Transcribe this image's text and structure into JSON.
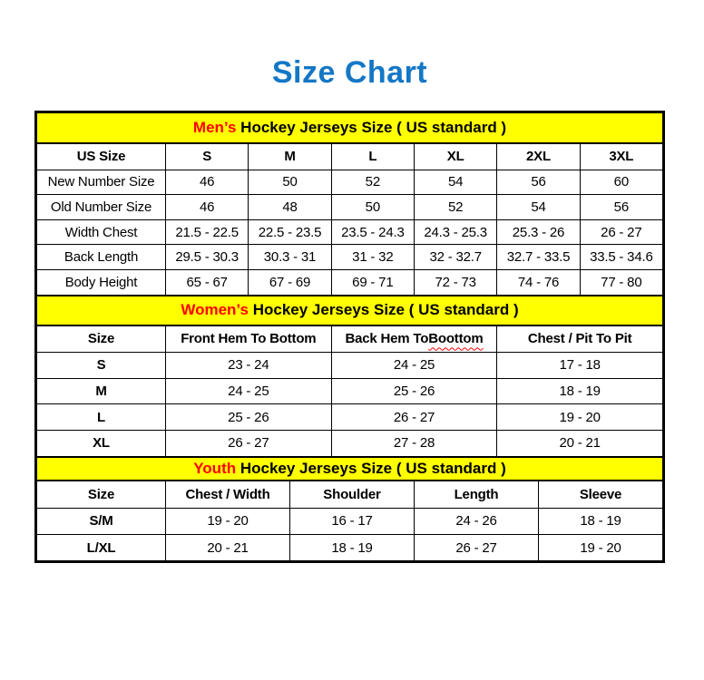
{
  "page": {
    "title": "Size Chart"
  },
  "colors": {
    "title_blue": "#1377c6",
    "band_yellow": "#ffff00",
    "accent_red": "#ff0000",
    "border_black": "#000000"
  },
  "mens": {
    "title_accent": "Men’s",
    "title_rest": " Hockey Jerseys Size ( US standard )",
    "headers": [
      "US Size",
      "S",
      "M",
      "L",
      "XL",
      "2XL",
      "3XL"
    ],
    "rows": [
      {
        "label": "New Number Size",
        "values": [
          "46",
          "50",
          "52",
          "54",
          "56",
          "60"
        ]
      },
      {
        "label": "Old Number Size",
        "values": [
          "46",
          "48",
          "50",
          "52",
          "54",
          "56"
        ]
      },
      {
        "label": "Width Chest",
        "values": [
          "21.5 - 22.5",
          "22.5 - 23.5",
          "23.5 - 24.3",
          "24.3 - 25.3",
          "25.3 - 26",
          "26 - 27"
        ]
      },
      {
        "label": "Back Length",
        "values": [
          "29.5 - 30.3",
          "30.3 - 31",
          "31 - 32",
          "32 - 32.7",
          "32.7 - 33.5",
          "33.5 - 34.6"
        ]
      },
      {
        "label": "Body Height",
        "values": [
          "65 - 67",
          "67 - 69",
          "69 - 71",
          "72 - 73",
          "74 - 76",
          "77 - 80"
        ]
      }
    ]
  },
  "womens": {
    "title_accent": "Women’s",
    "title_rest": " Hockey Jerseys Size ( US standard )",
    "headers": {
      "size": "Size",
      "front_hem": "Front Hem To Bottom",
      "back_hem_prefix": "Back Hem To ",
      "back_hem_word": "Boottom",
      "chest": "Chest / Pit To Pit"
    },
    "rows": [
      {
        "label": "S",
        "values": [
          "23 - 24",
          "24 - 25",
          "17 - 18"
        ]
      },
      {
        "label": "M",
        "values": [
          "24 - 25",
          "25 - 26",
          "18 - 19"
        ]
      },
      {
        "label": "L",
        "values": [
          "25 - 26",
          "26 - 27",
          "19 - 20"
        ]
      },
      {
        "label": "XL",
        "values": [
          "26 - 27",
          "27 - 28",
          "20 - 21"
        ]
      }
    ]
  },
  "youth": {
    "title_accent": "Youth",
    "title_rest": " Hockey Jerseys Size ( US standard )",
    "headers": [
      "Size",
      "Chest / Width",
      "Shoulder",
      "Length",
      "Sleeve"
    ],
    "rows": [
      {
        "label": "S/M",
        "values": [
          "19 - 20",
          "16 - 17",
          "24 - 26",
          "18 - 19"
        ]
      },
      {
        "label": "L/XL",
        "values": [
          "20 - 21",
          "18 - 19",
          "26 - 27",
          "19 - 20"
        ]
      }
    ]
  }
}
